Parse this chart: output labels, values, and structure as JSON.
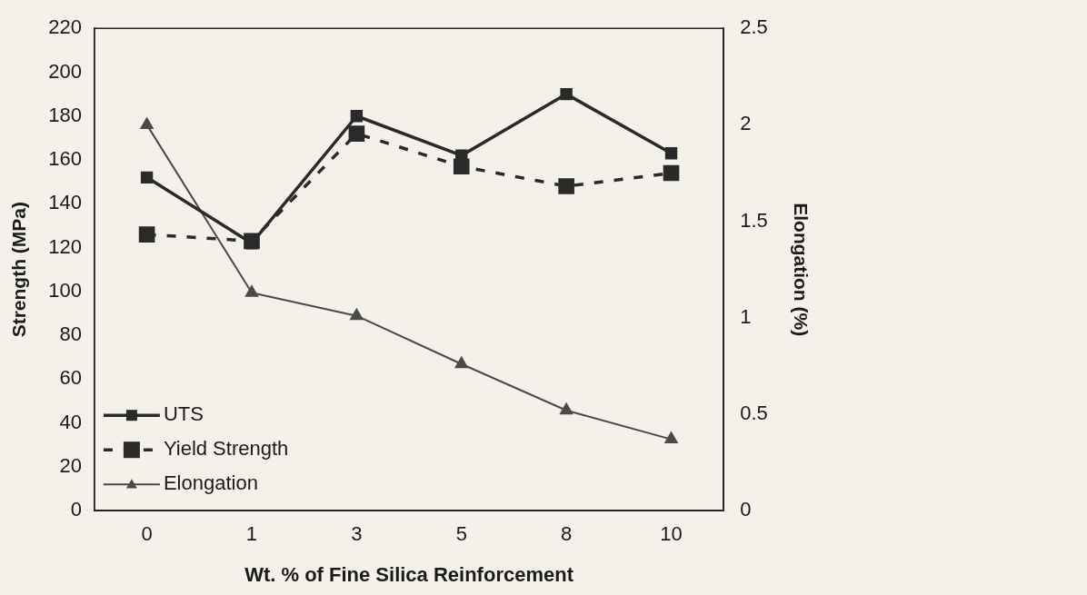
{
  "chart_data": {
    "type": "line",
    "xlabel": "Wt. % of Fine Silica Reinforcement",
    "ylabel": "Strength (MPa)",
    "y2label": "Elongation (%)",
    "categories": [
      "0",
      "1",
      "3",
      "5",
      "8",
      "10"
    ],
    "series": [
      {
        "name": "UTS",
        "color": "#2a2a2a",
        "values": [
          152,
          122,
          180,
          162,
          190,
          163
        ],
        "marker": "square",
        "line_style": "solid"
      },
      {
        "name": "Yield Strength",
        "color": "#2a2a2a",
        "values": [
          126,
          123,
          172,
          157,
          148,
          154
        ],
        "marker": "square",
        "line_style": "dashed"
      },
      {
        "name": "Elongation",
        "color": "#4a4a4a",
        "values": [
          2.0,
          1.13,
          1.01,
          0.76,
          0.52,
          0.37
        ],
        "marker": "triangle",
        "line_style": "solid",
        "axis": "y2"
      }
    ],
    "ylim": [
      0,
      220
    ],
    "yticks": [
      0,
      20,
      40,
      60,
      80,
      100,
      120,
      140,
      160,
      180,
      200,
      220
    ],
    "y2lim": [
      0,
      2.5
    ],
    "y2ticks": [
      0,
      0.5,
      1,
      1.5,
      2,
      2.5
    ],
    "grid": false,
    "legend": "bottom left"
  }
}
